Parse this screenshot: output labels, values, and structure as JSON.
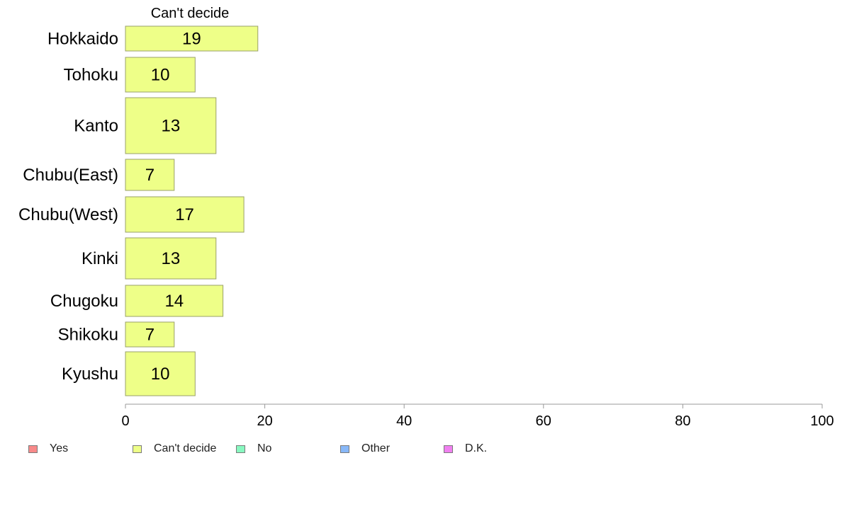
{
  "chart_data": {
    "type": "bar",
    "orientation": "horizontal",
    "title": "Can't decide",
    "categories": [
      "Hokkaido",
      "Tohoku",
      "Kanto",
      "Chubu(East)",
      "Chubu(West)",
      "Kinki",
      "Chugoku",
      "Shikoku",
      "Kyushu"
    ],
    "values": [
      19,
      10,
      13,
      7,
      17,
      13,
      14,
      7,
      10
    ],
    "bar_labels": [
      "19",
      "10",
      "13",
      "7",
      "17",
      "13",
      "14",
      "7",
      "10"
    ],
    "xlim": [
      0,
      100
    ],
    "xticks": [
      "0",
      "20",
      "40",
      "60",
      "80",
      "100"
    ],
    "grid": false,
    "legend_position": "bottom",
    "bar_color": "#eeff88",
    "bar_edge_color": "#9aa06a",
    "axis_color": "#999999"
  },
  "legend": {
    "items": [
      {
        "label": "Yes",
        "color": "#f88a8a"
      },
      {
        "label": "Can't decide",
        "color": "#eeff88"
      },
      {
        "label": "No",
        "color": "#88f8c0"
      },
      {
        "label": "Other",
        "color": "#88b8f8"
      },
      {
        "label": "D.K.",
        "color": "#f080f0"
      }
    ]
  }
}
